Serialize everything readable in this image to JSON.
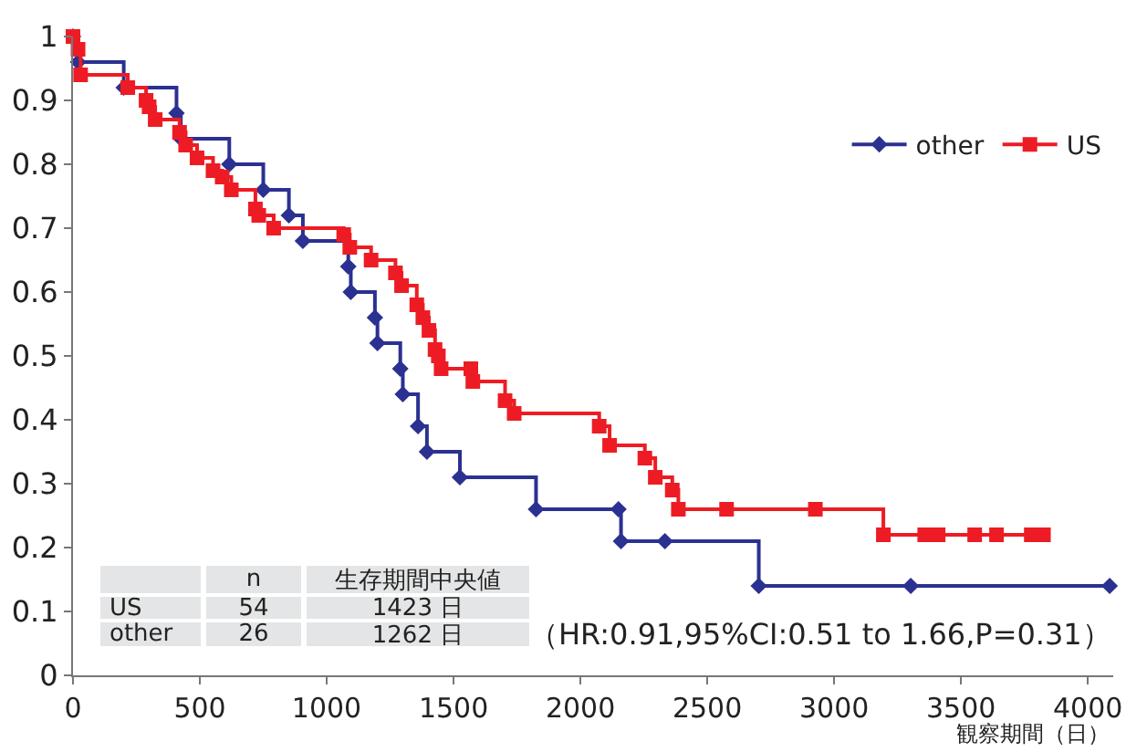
{
  "chart_data": {
    "type": "step",
    "xlabel": "観察期間（日）",
    "xlim": [
      0,
      4100
    ],
    "ylim": [
      0,
      1
    ],
    "xticks": [
      0,
      500,
      1000,
      1500,
      2000,
      2500,
      3000,
      3500,
      4000
    ],
    "yticks": [
      0,
      0.1,
      0.2,
      0.3,
      0.4,
      0.5,
      0.6,
      0.7,
      0.8,
      0.9,
      1
    ],
    "grid": false,
    "legend": "top right",
    "series": [
      {
        "name": "other",
        "color": "#2b3191",
        "marker": "diamond",
        "x": [
          0,
          20,
          200,
          408,
          425,
          616,
          750,
          851,
          906,
          1085,
          1095,
          1190,
          1200,
          1290,
          1300,
          1360,
          1395,
          1525,
          1825,
          2150,
          2160,
          2333,
          2703,
          3302,
          4086
        ],
        "values": [
          1,
          0.96,
          0.92,
          0.88,
          0.84,
          0.8,
          0.76,
          0.72,
          0.68,
          0.64,
          0.6,
          0.56,
          0.52,
          0.48,
          0.44,
          0.39,
          0.35,
          0.31,
          0.26,
          0.26,
          0.21,
          0.21,
          0.14,
          0.14,
          0.14
        ]
      },
      {
        "name": "US",
        "color": "#ed1c24",
        "marker": "square",
        "x": [
          0,
          20,
          30,
          216,
          288,
          300,
          324,
          420,
          444,
          489,
          552,
          588,
          624,
          719,
          732,
          791,
          1067,
          1091,
          1175,
          1271,
          1295,
          1355,
          1379,
          1403,
          1427,
          1440,
          1451,
          1568,
          1576,
          1703,
          1739,
          2074,
          2115,
          2254,
          2295,
          2362,
          2386,
          2576,
          2926,
          3194,
          3357,
          3410,
          3554,
          3640,
          3777,
          3825
        ],
        "values": [
          1,
          0.98,
          0.94,
          0.92,
          0.9,
          0.89,
          0.87,
          0.85,
          0.83,
          0.81,
          0.79,
          0.78,
          0.76,
          0.73,
          0.72,
          0.7,
          0.69,
          0.67,
          0.65,
          0.63,
          0.61,
          0.58,
          0.56,
          0.54,
          0.51,
          0.5,
          0.48,
          0.48,
          0.46,
          0.43,
          0.41,
          0.39,
          0.36,
          0.34,
          0.31,
          0.29,
          0.26,
          0.26,
          0.26,
          0.22,
          0.22,
          0.22,
          0.22,
          0.22,
          0.22,
          0.22
        ]
      }
    ],
    "annotations": [
      "n",
      "生存期間中央値",
      "US",
      "54",
      "1423 日",
      "other",
      "26",
      "1262 日",
      "（HR:0.91,95%CI:0.51 to 1.66,P=0.31）"
    ]
  }
}
